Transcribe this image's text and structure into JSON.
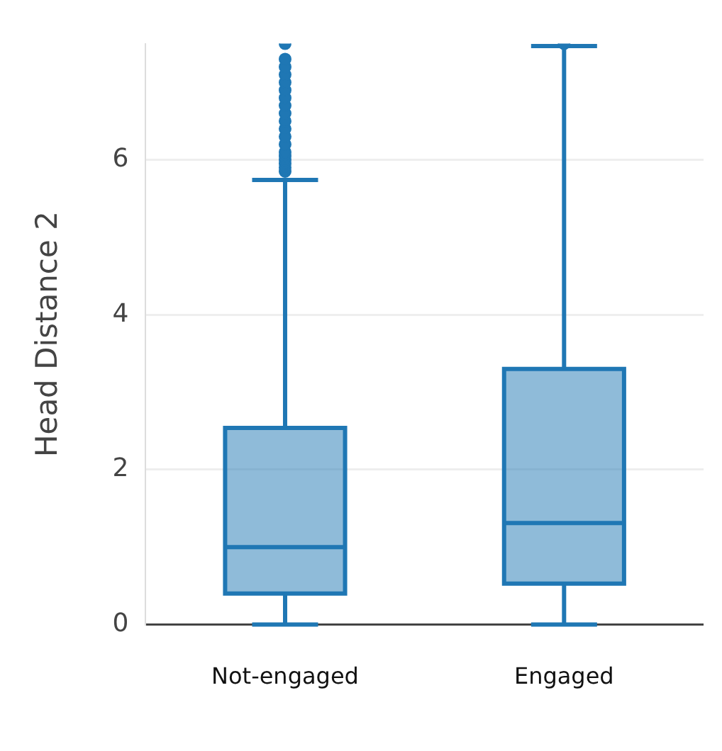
{
  "chart_data": {
    "type": "box",
    "ylabel": "Head Distance 2",
    "categories": [
      "Not-engaged",
      "Engaged"
    ],
    "series": [
      {
        "color": "#1f77b4",
        "boxes": [
          {
            "low": 0,
            "q1": 0.4,
            "median": 1.0,
            "q3": 2.54,
            "high": 5.74,
            "outliers": [
              5.85,
              5.9,
              5.95,
              6.0,
              6.05,
              6.1,
              6.2,
              6.3,
              6.4,
              6.5,
              6.6,
              6.7,
              6.8,
              6.9,
              7.0,
              7.1,
              7.2,
              7.3,
              7.5
            ]
          },
          {
            "low": 0,
            "q1": 0.53,
            "median": 1.31,
            "q3": 3.3,
            "high": 7.47,
            "outliers": [
              7.5
            ]
          }
        ]
      }
    ],
    "ylim": [
      0,
      7.5
    ],
    "yticks": [
      0,
      2,
      4,
      6
    ],
    "grid": "y"
  }
}
